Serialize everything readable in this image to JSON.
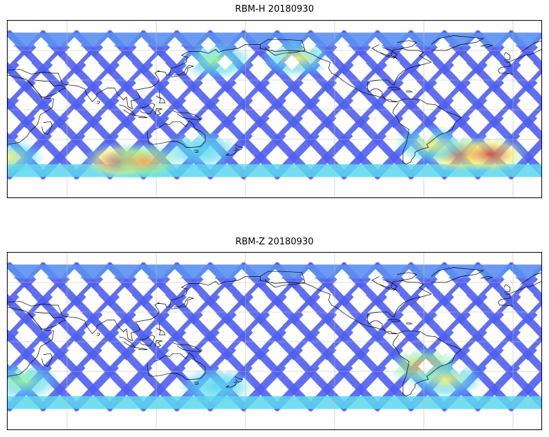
{
  "panels": [
    {
      "title": "RBM-H 20180930",
      "hotspots": [
        {
          "lon": 95,
          "lat": -52,
          "level": 0.95
        },
        {
          "lon": 112,
          "lat": -52,
          "level": 0.75
        },
        {
          "lon": 160,
          "lat": 50,
          "level": 0.55
        },
        {
          "lon": 215,
          "lat": 52,
          "level": 0.7
        },
        {
          "lon": 325,
          "lat": -45,
          "level": 0.95
        },
        {
          "lon": 345,
          "lat": -45,
          "level": 0.95
        },
        {
          "lon": 305,
          "lat": -35,
          "level": 0.7
        },
        {
          "lon": 20,
          "lat": -48,
          "level": 0.65
        },
        {
          "lon": 150,
          "lat": -40,
          "level": 0.4
        }
      ]
    },
    {
      "title": "RBM-Z 20180930",
      "hotspots": [
        {
          "lon": 300,
          "lat": -25,
          "level": 0.75
        },
        {
          "lon": 315,
          "lat": -38,
          "level": 0.6
        },
        {
          "lon": 30,
          "lat": -40,
          "level": 0.45
        },
        {
          "lon": 160,
          "lat": -45,
          "level": 0.4
        }
      ]
    }
  ],
  "colormap": [
    "#4f5fef",
    "#5a8ff0",
    "#5ad8f0",
    "#9af59a",
    "#f5f070",
    "#f5a050",
    "#d05050"
  ]
}
